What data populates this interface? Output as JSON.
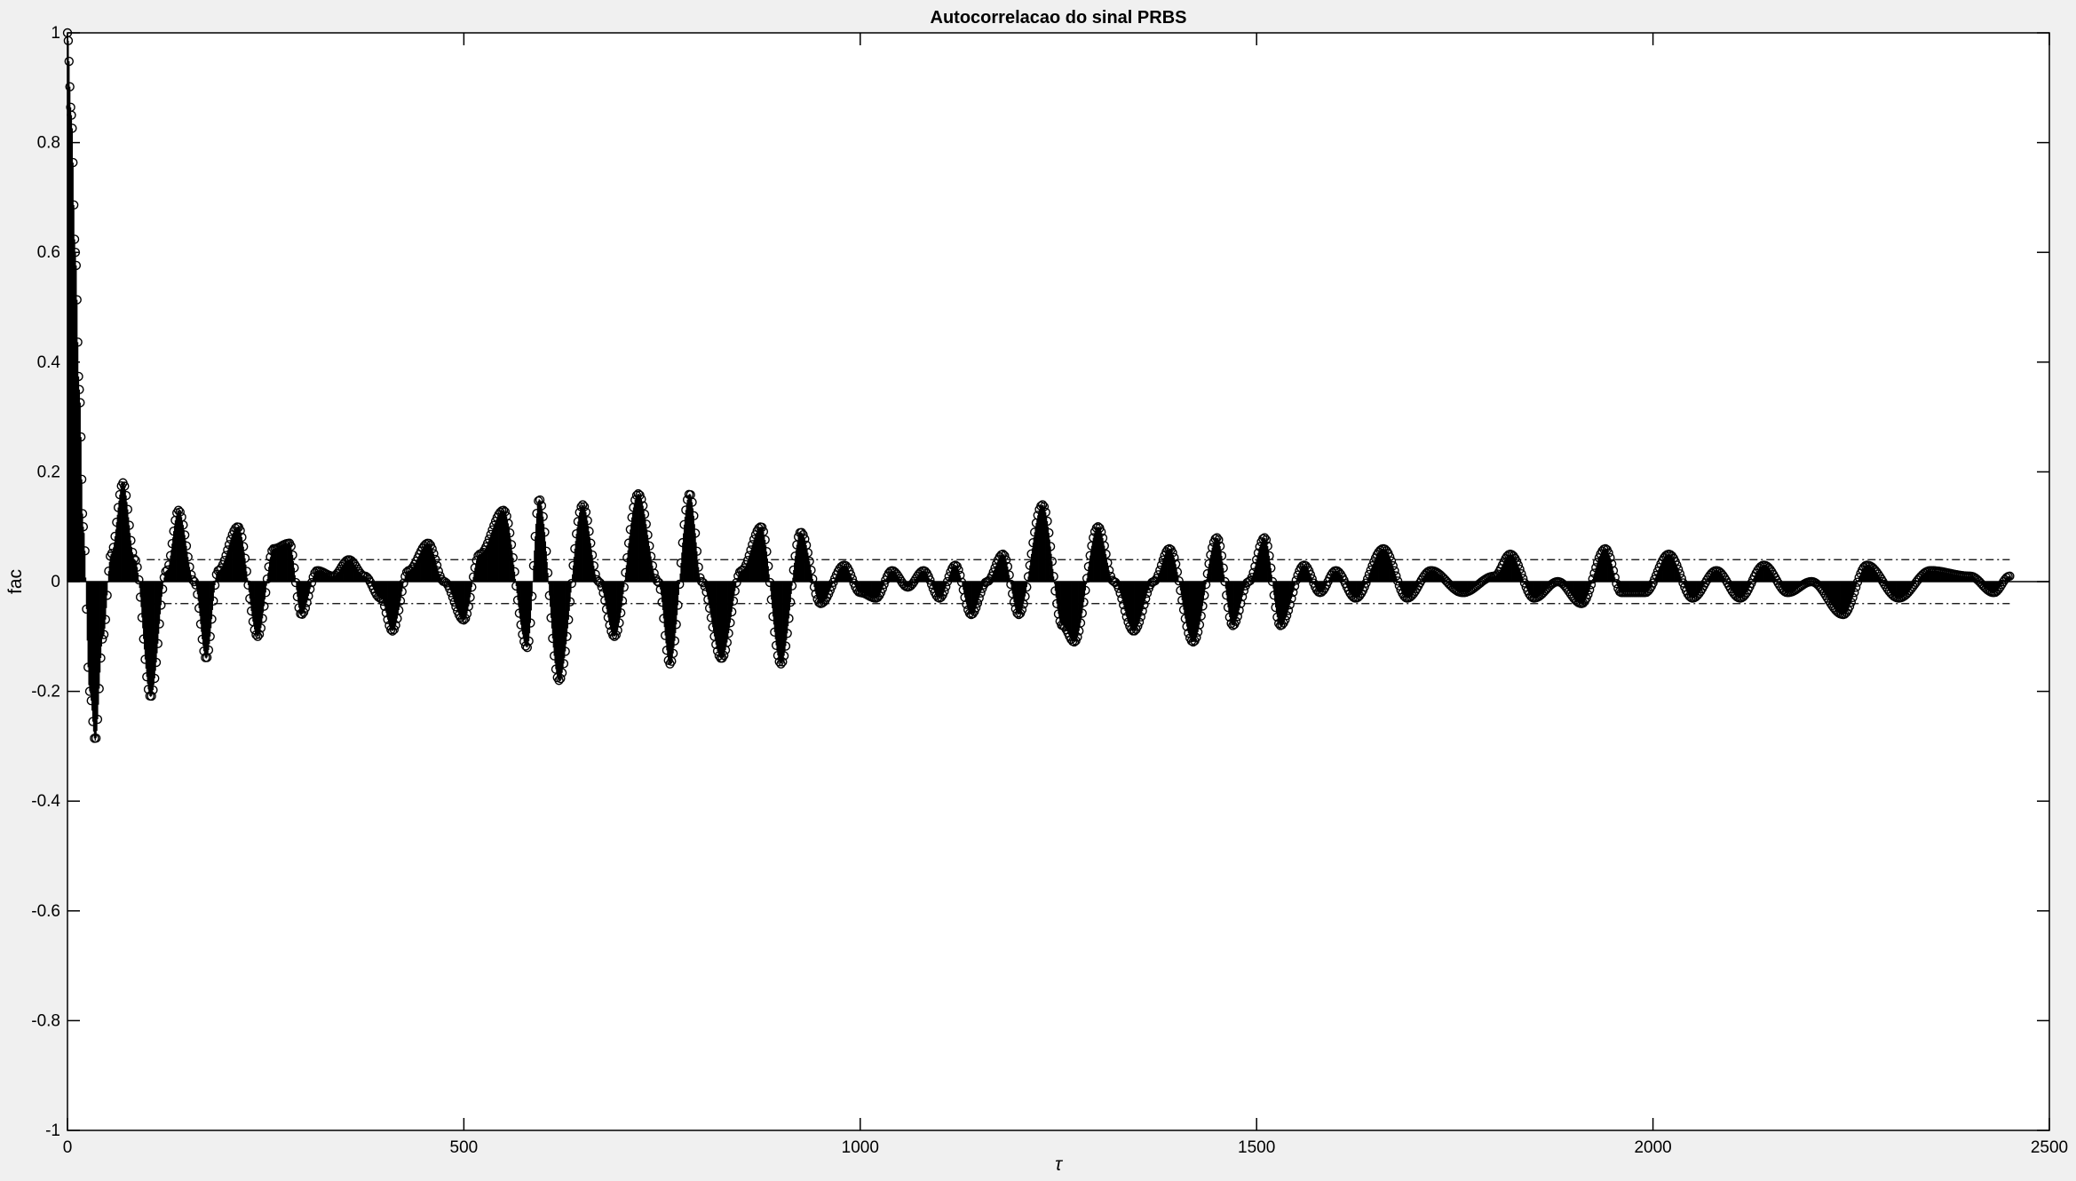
{
  "chart_data": {
    "type": "stem",
    "title": "Autocorrelacao do sinal PRBS",
    "xlabel": "τ",
    "ylabel": "fac",
    "xlim": [
      0,
      2500
    ],
    "ylim": [
      -1,
      1
    ],
    "xticks": [
      0,
      500,
      1000,
      1500,
      2000,
      2500
    ],
    "xtick_labels": [
      "0",
      "500",
      "1000",
      "1500",
      "2000",
      "2500"
    ],
    "yticks": [
      -1,
      -0.8,
      -0.6,
      -0.4,
      -0.2,
      0,
      0.2,
      0.4,
      0.6,
      0.8,
      1
    ],
    "ytick_labels": [
      "-1",
      "-0.8",
      "-0.6",
      "-0.4",
      "-0.2",
      "0",
      "0.2",
      "0.4",
      "0.6",
      "0.8",
      "1"
    ],
    "grid": false,
    "marker": "open circle",
    "lag_range": [
      0,
      2450
    ],
    "confidence_bounds": [
      0.04,
      -0.04
    ],
    "confidence_bounds_x_range": [
      100,
      2450
    ],
    "series_envelope": {
      "x": [
        0,
        5,
        10,
        15,
        20,
        28,
        35,
        45,
        55,
        70,
        85,
        105,
        125,
        140,
        160,
        175,
        190,
        215,
        240,
        260,
        280,
        295,
        315,
        335,
        355,
        375,
        395,
        410,
        430,
        455,
        475,
        500,
        520,
        550,
        580,
        595,
        620,
        650,
        670,
        690,
        720,
        745,
        760,
        785,
        800,
        825,
        850,
        875,
        900,
        925,
        950,
        980,
        1000,
        1020,
        1040,
        1060,
        1080,
        1100,
        1120,
        1140,
        1160,
        1180,
        1200,
        1230,
        1255,
        1270,
        1300,
        1320,
        1345,
        1370,
        1390,
        1420,
        1450,
        1470,
        1490,
        1510,
        1530,
        1560,
        1580,
        1600,
        1625,
        1660,
        1690,
        1720,
        1760,
        1800,
        1820,
        1850,
        1880,
        1910,
        1940,
        1960,
        1990,
        2020,
        2050,
        2080,
        2110,
        2140,
        2170,
        2200,
        2240,
        2270,
        2310,
        2350,
        2400,
        2430,
        2450
      ],
      "y": [
        1.0,
        0.85,
        0.6,
        0.35,
        0.1,
        -0.2,
        -0.29,
        -0.1,
        0.05,
        0.18,
        0.04,
        -0.21,
        0.02,
        0.13,
        0.0,
        -0.14,
        0.02,
        0.1,
        -0.1,
        0.06,
        0.07,
        -0.06,
        0.02,
        0.01,
        0.04,
        0.01,
        -0.03,
        -0.09,
        0.02,
        0.07,
        0.0,
        -0.07,
        0.05,
        0.13,
        -0.12,
        0.15,
        -0.18,
        0.14,
        0.0,
        -0.1,
        0.16,
        0.0,
        -0.15,
        0.16,
        0.0,
        -0.14,
        0.02,
        0.1,
        -0.15,
        0.09,
        -0.04,
        0.03,
        -0.02,
        -0.03,
        0.02,
        -0.01,
        0.02,
        -0.03,
        0.03,
        -0.06,
        0.0,
        0.05,
        -0.06,
        0.14,
        -0.08,
        -0.11,
        0.1,
        0.0,
        -0.09,
        0.0,
        0.06,
        -0.11,
        0.08,
        -0.08,
        0.0,
        0.08,
        -0.08,
        0.03,
        -0.02,
        0.02,
        -0.03,
        0.06,
        -0.03,
        0.02,
        -0.02,
        0.01,
        0.05,
        -0.03,
        0.0,
        -0.04,
        0.06,
        -0.02,
        -0.02,
        0.05,
        -0.03,
        0.02,
        -0.03,
        0.03,
        -0.02,
        0.0,
        -0.06,
        0.03,
        -0.03,
        0.02,
        0.01,
        -0.02,
        0.01
      ]
    }
  }
}
